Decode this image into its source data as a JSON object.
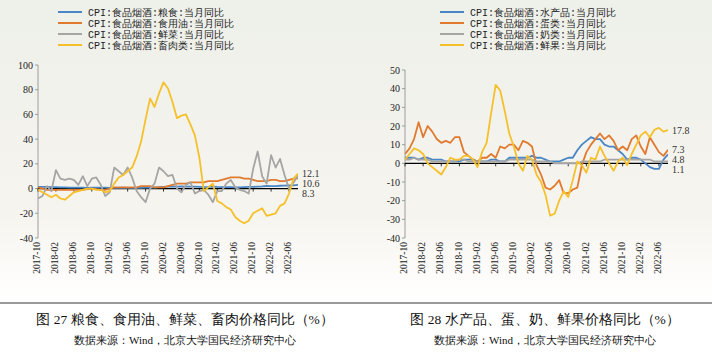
{
  "chart_data": [
    {
      "type": "line",
      "title": "图 27 粮食、食用油、鲜菜、畜肉价格同比（%）",
      "source": "数据来源：Wind，北京大学国民经济研究中心",
      "categories": [
        "2017-10",
        null,
        null,
        null,
        "2018-02",
        null,
        null,
        null,
        "2018-06",
        null,
        null,
        null,
        "2018-10",
        null,
        null,
        null,
        "2019-02",
        null,
        null,
        null,
        "2019-06",
        null,
        null,
        null,
        "2019-10",
        null,
        null,
        null,
        "2020-02",
        null,
        null,
        null,
        "2020-06",
        null,
        null,
        null,
        "2020-10",
        null,
        null,
        null,
        "2021-02",
        null,
        null,
        null,
        "2021-06",
        null,
        null,
        null,
        "2021-10",
        null,
        null,
        null,
        "2022-02",
        null,
        null,
        null,
        "2022-06",
        null,
        null
      ],
      "ylim": [
        -40,
        100
      ],
      "yticks": [
        -40,
        -20,
        0,
        20,
        40,
        60,
        80,
        100
      ],
      "grid": false,
      "legend": "top-left",
      "series": [
        {
          "name": "CPI:食品烟酒:粮食:当月同比",
          "color": "#4a86c5",
          "values": [
            1.4,
            1.4,
            1.3,
            1.2,
            1.2,
            1.0,
            0.9,
            0.7,
            0.7,
            0.8,
            0.7,
            0.6,
            0.8,
            0.8,
            0.8,
            0.7,
            0.6,
            0.6,
            0.6,
            0.7,
            0.6,
            0.5,
            0.6,
            0.6,
            0.7,
            0.7,
            0.8,
            1.2,
            1.4,
            1.5,
            1.6,
            1.6,
            1.7,
            1.5,
            1.5,
            1.5,
            1.4,
            1.2,
            1.3,
            1.5,
            1.3,
            1.2,
            1.2,
            1.2,
            1.0,
            1.0,
            1.2,
            1.3,
            1.4,
            1.6,
            1.8,
            2.1,
            2.0,
            2.0,
            2.3,
            2.4,
            2.5,
            2.6,
            3.0
          ]
        },
        {
          "name": "CPI:食品烟酒:食用油:当月同比",
          "color": "#e07a2f",
          "end_label": "8.3",
          "values": [
            1,
            0,
            -1,
            -1,
            -1,
            -1,
            -1,
            -1,
            -1,
            -1,
            -1,
            -0.5,
            0,
            -0.5,
            -1,
            -1,
            0,
            1,
            1,
            1,
            1,
            1,
            1,
            2,
            2,
            2,
            1,
            1,
            1,
            2,
            3,
            4,
            4,
            4,
            5,
            5,
            5,
            5,
            6,
            6,
            6,
            7,
            8,
            9,
            9,
            9,
            8,
            8,
            7,
            6,
            6,
            6,
            7,
            7,
            6,
            6,
            7,
            8,
            8.3
          ]
        },
        {
          "name": "CPI:食品烟酒:鲜菜:当月同比",
          "color": "#a5a5a5",
          "end_label": "10.6",
          "values": [
            -8,
            -6,
            2,
            -2,
            15,
            8,
            7,
            8,
            7,
            3,
            10,
            2,
            8,
            9,
            3,
            -6,
            -3,
            17,
            14,
            11,
            17,
            9,
            -2,
            -7,
            -11,
            0,
            4,
            17,
            14,
            10,
            11,
            0,
            -3,
            3,
            5,
            -4,
            -2,
            -1,
            -5,
            -11,
            -2,
            -2,
            4,
            7,
            1,
            -1,
            -2,
            -4,
            16,
            30,
            10,
            4,
            27,
            17,
            24,
            11,
            -0.2,
            5,
            10.6
          ]
        },
        {
          "name": "CPI:食品烟酒:畜肉类:当月同比",
          "color": "#f5c02a",
          "end_label": "12.1",
          "values": [
            -1,
            -3,
            -5,
            -7,
            -5,
            -8,
            -9,
            -6,
            -3,
            -2,
            -1,
            0,
            0,
            -1,
            -1,
            -3,
            -2,
            4,
            9,
            11,
            14,
            17,
            26,
            38,
            56,
            73,
            66,
            77,
            86,
            81,
            70,
            57,
            59,
            60,
            52,
            43,
            25,
            -2,
            1,
            4,
            -10,
            -12,
            -15,
            -17,
            -23,
            -26,
            -28,
            -26,
            -20,
            -18,
            -16,
            -22,
            -21,
            -20,
            -14,
            -12,
            -4,
            8,
            12.1
          ]
        }
      ]
    },
    {
      "type": "line",
      "title": "图 28 水产品、蛋、奶、鲜果价格同比（%）",
      "source": "数据来源：Wind，北京大学国民经济研究中心",
      "categories": [
        "2017-10",
        null,
        null,
        null,
        "2018-02",
        null,
        null,
        null,
        "2018-06",
        null,
        null,
        null,
        "2018-10",
        null,
        null,
        null,
        "2019-02",
        null,
        null,
        null,
        "2019-06",
        null,
        null,
        null,
        "2019-10",
        null,
        null,
        null,
        "2020-02",
        null,
        null,
        null,
        "2020-06",
        null,
        null,
        null,
        "2020-10",
        null,
        null,
        null,
        "2021-02",
        null,
        null,
        null,
        "2021-06",
        null,
        null,
        null,
        "2021-10",
        null,
        null,
        null,
        "2022-02",
        null,
        null,
        null,
        "2022-06",
        null,
        null
      ],
      "ylim": [
        -40,
        50
      ],
      "yticks": [
        -40,
        -30,
        -20,
        -10,
        0,
        10,
        20,
        30,
        40,
        50
      ],
      "grid": false,
      "legend": "top-left",
      "series": [
        {
          "name": "CPI:食品烟酒:水产品:当月同比",
          "color": "#4a86c5",
          "end_label": "4.8",
          "values": [
            3,
            3,
            3,
            2,
            3,
            3,
            2,
            2,
            2,
            1,
            1,
            1,
            1,
            2,
            2,
            2,
            1,
            1,
            1,
            2,
            2,
            1,
            1,
            3,
            3,
            3,
            3,
            3,
            4,
            3,
            3,
            2,
            1,
            1,
            1,
            2,
            3,
            3,
            7,
            10,
            12,
            14,
            13,
            13,
            10,
            9,
            9,
            7,
            5,
            2,
            3,
            3,
            2,
            0,
            -2,
            -3,
            -3,
            2,
            4.8
          ]
        },
        {
          "name": "CPI:食品烟酒:蛋类:当月同比",
          "color": "#e07a2f",
          "end_label": "7.3",
          "values": [
            5,
            8,
            13,
            22,
            14,
            20,
            17,
            13,
            11,
            12,
            11,
            14,
            14,
            6,
            4,
            2,
            1,
            3,
            3,
            5,
            3,
            9,
            8,
            10,
            10,
            7,
            12,
            11,
            9,
            -1,
            -6,
            -13,
            -14,
            -12,
            -9,
            -16,
            -16,
            -14,
            -13,
            -1,
            6,
            10,
            13,
            16,
            13,
            15,
            12,
            7,
            9,
            7,
            13,
            15,
            9,
            5,
            14,
            10,
            6,
            4,
            7.3
          ]
        },
        {
          "name": "CPI:食品烟酒:奶类:当月同比",
          "color": "#a5a5a5",
          "end_label": "1.1",
          "values": [
            2,
            2,
            3,
            2,
            2,
            2,
            1,
            1,
            1,
            1,
            1,
            1,
            2,
            2,
            1,
            1,
            1,
            1,
            1,
            1,
            1,
            1,
            1,
            2,
            2,
            2,
            2,
            2,
            2,
            1,
            1,
            1,
            1,
            0,
            0,
            0,
            0,
            0,
            0,
            1,
            1,
            1,
            1,
            1,
            2,
            2,
            2,
            2,
            2,
            2,
            2,
            2,
            2,
            2,
            2,
            1,
            1,
            1,
            1.1
          ]
        },
        {
          "name": "CPI:食品烟酒:鲜果:当月同比",
          "color": "#f5c02a",
          "end_label": "17.8",
          "values": [
            2,
            5,
            8,
            7,
            5,
            0,
            -2,
            -4,
            -6,
            -2,
            3,
            2,
            2,
            4,
            4,
            2,
            -2,
            6,
            11,
            27,
            42,
            39,
            28,
            16,
            9,
            0,
            -4,
            4,
            2,
            -6,
            -10,
            -17,
            -28,
            -27,
            -20,
            -15,
            -18,
            -9,
            1,
            -1,
            -5,
            3,
            2,
            9,
            4,
            0,
            -4,
            1,
            3,
            -1,
            5,
            10,
            15,
            17,
            14,
            18,
            19,
            17,
            17.8
          ]
        }
      ]
    }
  ]
}
